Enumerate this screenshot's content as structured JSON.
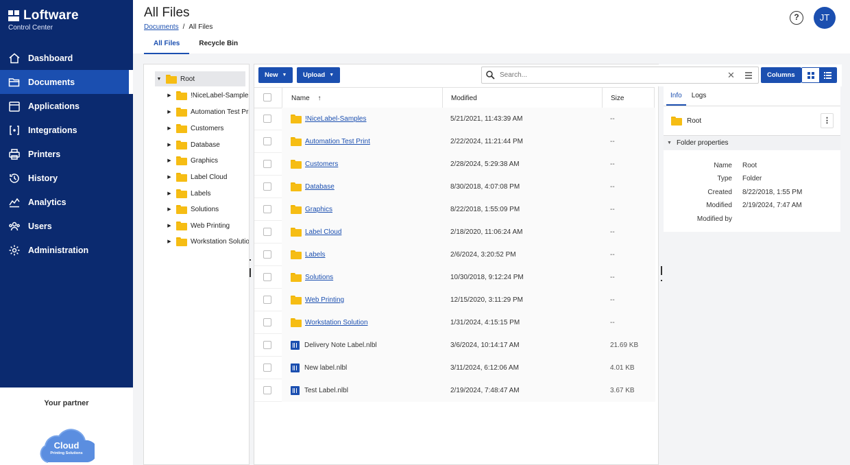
{
  "brand": {
    "name": "Loftware",
    "subtitle": "Control Center"
  },
  "nav": [
    {
      "label": "Dashboard",
      "icon": "home-icon",
      "active": false
    },
    {
      "label": "Documents",
      "icon": "folder-open-icon",
      "active": true
    },
    {
      "label": "Applications",
      "icon": "calendar-icon",
      "active": false
    },
    {
      "label": "Integrations",
      "icon": "integrations-icon",
      "active": false
    },
    {
      "label": "Printers",
      "icon": "printer-icon",
      "active": false
    },
    {
      "label": "History",
      "icon": "history-icon",
      "active": false
    },
    {
      "label": "Analytics",
      "icon": "analytics-icon",
      "active": false
    },
    {
      "label": "Users",
      "icon": "users-icon",
      "active": false
    },
    {
      "label": "Administration",
      "icon": "gear-icon",
      "active": false
    }
  ],
  "partner": {
    "label": "Your partner",
    "logo_text": "Cloud",
    "logo_subtext": "Printing Solutions"
  },
  "header": {
    "title": "All Files",
    "breadcrumb": [
      "Documents",
      "All Files"
    ],
    "avatar_initials": "JT",
    "help_symbol": "?"
  },
  "tabs": [
    {
      "label": "All Files",
      "active": true
    },
    {
      "label": "Recycle Bin",
      "active": false
    }
  ],
  "tree": {
    "root": "Root",
    "children": [
      "!NiceLabel-Samples",
      "Automation Test Print",
      "Customers",
      "Database",
      "Graphics",
      "Label Cloud",
      "Labels",
      "Solutions",
      "Web Printing",
      "Workstation Solution"
    ]
  },
  "toolbar": {
    "new_label": "New",
    "upload_label": "Upload",
    "search_placeholder": "Search...",
    "columns_label": "Columns"
  },
  "table": {
    "headers": {
      "name": "Name",
      "modified": "Modified",
      "size": "Size",
      "sort_indicator": "↑"
    },
    "rows": [
      {
        "name": "!NiceLabel-Samples",
        "type": "folder",
        "modified": "5/21/2021, 11:43:39 AM",
        "size": "--"
      },
      {
        "name": "Automation Test Print",
        "type": "folder",
        "modified": "2/22/2024, 11:21:44 PM",
        "size": "--"
      },
      {
        "name": "Customers",
        "type": "folder",
        "modified": "2/28/2024, 5:29:38 AM",
        "size": "--"
      },
      {
        "name": "Database",
        "type": "folder",
        "modified": "8/30/2018, 4:07:08 PM",
        "size": "--"
      },
      {
        "name": "Graphics",
        "type": "folder",
        "modified": "8/22/2018, 1:55:09 PM",
        "size": "--"
      },
      {
        "name": "Label Cloud",
        "type": "folder",
        "modified": "2/18/2020, 11:06:24 AM",
        "size": "--"
      },
      {
        "name": "Labels",
        "type": "folder",
        "modified": "2/6/2024, 3:20:52 PM",
        "size": "--"
      },
      {
        "name": "Solutions",
        "type": "folder",
        "modified": "10/30/2018, 9:12:24 PM",
        "size": "--"
      },
      {
        "name": "Web Printing",
        "type": "folder",
        "modified": "12/15/2020, 3:11:29 PM",
        "size": "--"
      },
      {
        "name": "Workstation Solution",
        "type": "folder",
        "modified": "1/31/2024, 4:15:15 PM",
        "size": "--"
      },
      {
        "name": "Delivery Note Label.nlbl",
        "type": "label",
        "modified": "3/6/2024, 10:14:17 AM",
        "size": "21.69 KB"
      },
      {
        "name": "New label.nlbl",
        "type": "label",
        "modified": "3/11/2024, 6:12:06 AM",
        "size": "4.01 KB"
      },
      {
        "name": "Test Label.nlbl",
        "type": "label",
        "modified": "2/19/2024, 7:48:47 AM",
        "size": "3.67 KB"
      }
    ]
  },
  "info": {
    "tabs": [
      "Info",
      "Logs"
    ],
    "selected": "Root",
    "section_title": "Folder properties",
    "props": [
      {
        "key": "Name",
        "value": "Root"
      },
      {
        "key": "Type",
        "value": "Folder"
      },
      {
        "key": "Created",
        "value": "8/22/2018, 1:55 PM"
      },
      {
        "key": "Modified",
        "value": "2/19/2024, 7:47 AM"
      },
      {
        "key": "Modified by",
        "value": ""
      }
    ]
  },
  "colors": {
    "navy": "#0b2a6f",
    "accent": "#1b4fb0",
    "folder": "#f6bd14"
  }
}
